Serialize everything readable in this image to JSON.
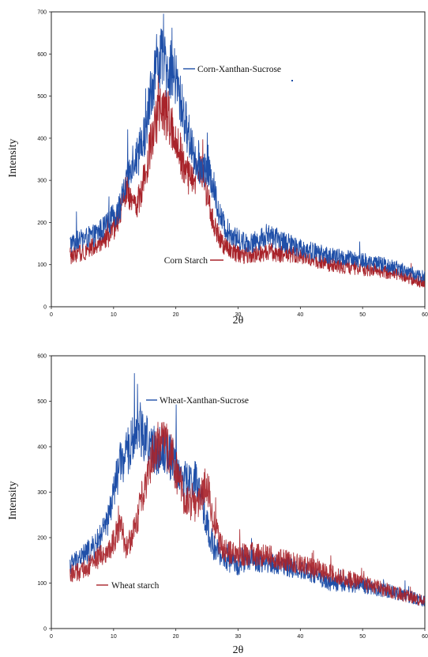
{
  "chart_data": [
    {
      "type": "line",
      "title": "",
      "xlabel": "2θ",
      "ylabel": "Intensity",
      "xlim": [
        0,
        60
      ],
      "ylim": [
        0,
        700
      ],
      "xticks": [
        0,
        10,
        20,
        30,
        40,
        50,
        60
      ],
      "yticks": [
        0,
        100,
        200,
        300,
        400,
        500,
        600,
        700
      ],
      "grid": false,
      "series": [
        {
          "name": "Corn-Xanthan-Sucrose",
          "color": "#1f4fa8",
          "x": [
            3,
            5,
            7,
            9,
            11,
            12,
            13,
            14,
            15,
            16,
            17,
            18,
            19,
            20,
            21,
            22,
            23,
            24,
            25,
            26,
            27,
            28,
            30,
            32,
            35,
            38,
            40,
            45,
            50,
            55,
            60
          ],
          "y": [
            150,
            160,
            170,
            195,
            235,
            290,
            350,
            360,
            410,
            510,
            590,
            580,
            565,
            540,
            470,
            410,
            360,
            330,
            330,
            290,
            220,
            185,
            160,
            150,
            170,
            150,
            140,
            120,
            110,
            95,
            70
          ]
        },
        {
          "name": "Corn Starch",
          "color": "#a8232a",
          "x": [
            3,
            5,
            7,
            9,
            10,
            11,
            12,
            13,
            14,
            15,
            16,
            17,
            18,
            19,
            20,
            21,
            22,
            23,
            24,
            25,
            26,
            27,
            28,
            30,
            32,
            35,
            40,
            45,
            50,
            55,
            60
          ],
          "y": [
            120,
            130,
            145,
            165,
            180,
            220,
            280,
            240,
            250,
            310,
            390,
            450,
            470,
            440,
            400,
            350,
            310,
            300,
            330,
            270,
            200,
            160,
            140,
            125,
            120,
            130,
            120,
            100,
            90,
            80,
            55
          ]
        }
      ],
      "annotations": [
        "Corn-Xanthan-Sucrose",
        "Corn Starch"
      ]
    },
    {
      "type": "line",
      "title": "",
      "xlabel": "2θ",
      "ylabel": "Intensity",
      "xlim": [
        0,
        60
      ],
      "ylim": [
        0,
        600
      ],
      "xticks": [
        0,
        10,
        20,
        30,
        40,
        50,
        60
      ],
      "yticks": [
        0,
        100,
        200,
        300,
        400,
        500,
        600
      ],
      "grid": false,
      "series": [
        {
          "name": "Wheat-Xanthan-Sucrose",
          "color": "#1f4fa8",
          "x": [
            3,
            5,
            7,
            9,
            10,
            11,
            12,
            13,
            14,
            15,
            16,
            17,
            18,
            19,
            20,
            21,
            22,
            23,
            24,
            25,
            26,
            27,
            28,
            30,
            32,
            35,
            40,
            45,
            50,
            55,
            60
          ],
          "y": [
            140,
            160,
            180,
            230,
            300,
            360,
            380,
            410,
            450,
            420,
            400,
            390,
            400,
            380,
            360,
            330,
            320,
            330,
            290,
            230,
            180,
            165,
            150,
            140,
            150,
            145,
            130,
            100,
            95,
            80,
            60
          ]
        },
        {
          "name": "Wheat starch",
          "color": "#a8232a",
          "x": [
            3,
            5,
            7,
            9,
            10,
            11,
            12,
            13,
            14,
            15,
            16,
            17,
            18,
            19,
            20,
            21,
            22,
            23,
            24,
            25,
            26,
            27,
            28,
            30,
            32,
            35,
            40,
            45,
            50,
            55,
            60
          ],
          "y": [
            120,
            125,
            150,
            170,
            190,
            230,
            180,
            200,
            250,
            320,
            370,
            400,
            410,
            390,
            350,
            300,
            280,
            270,
            290,
            320,
            240,
            190,
            170,
            160,
            165,
            160,
            140,
            120,
            100,
            80,
            60
          ]
        }
      ],
      "annotations": [
        "Wheat-Xanthan-Sucrose",
        "Wheat starch"
      ]
    }
  ]
}
